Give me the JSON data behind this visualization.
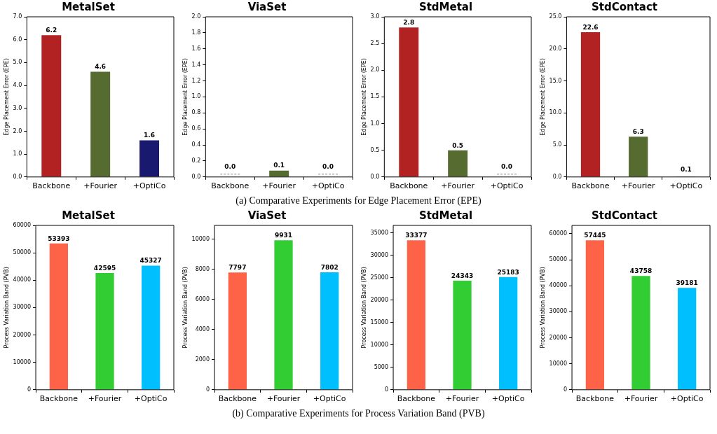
{
  "chart_data": [
    {
      "type": "bar",
      "title": "MetalSet",
      "ylabel": "Edge Placement Error (EPE)",
      "categories": [
        "Backbone",
        "+Fourier",
        "+OptiCo"
      ],
      "values": [
        6.2,
        4.6,
        1.6
      ],
      "colors": [
        "#b22222",
        "#556b2f",
        "#191970"
      ],
      "value_labels": [
        "6.2",
        "4.6",
        "1.6"
      ],
      "ylim": [
        0,
        7
      ],
      "yticks": [
        {
          "value": 0,
          "label": "0.0"
        },
        {
          "value": 1,
          "label": "1.0"
        },
        {
          "value": 2,
          "label": "2.0"
        },
        {
          "value": 3,
          "label": "3.0"
        },
        {
          "value": 4,
          "label": "4.0"
        },
        {
          "value": 5,
          "label": "5.0"
        },
        {
          "value": 6,
          "label": "6.0"
        },
        {
          "value": 7,
          "label": "7.0"
        }
      ],
      "annotations": [
        "(a) Comparative Experiments for Edge Placement Error (EPE)"
      ]
    },
    {
      "type": "bar",
      "title": "ViaSet",
      "ylabel": "Edge Placement Error (EPE)",
      "categories": [
        "Backbone",
        "+Fourier",
        "+OptiCo"
      ],
      "values": [
        0,
        0.08,
        0
      ],
      "colors": [
        "#b22222",
        "#556b2f",
        "#191970"
      ],
      "value_labels": [
        "0.0",
        "0.1",
        "0.0"
      ],
      "ylim": [
        0,
        2
      ],
      "yticks": [
        {
          "value": 0,
          "label": "0.0"
        },
        {
          "value": 0.2,
          "label": "0.2"
        },
        {
          "value": 0.4,
          "label": "0.4"
        },
        {
          "value": 0.6,
          "label": "0.6"
        },
        {
          "value": 0.8,
          "label": "0.8"
        },
        {
          "value": 1,
          "label": "1.0"
        },
        {
          "value": 1.2,
          "label": "1.2"
        },
        {
          "value": 1.4,
          "label": "1.4"
        },
        {
          "value": 1.6,
          "label": "1.6"
        },
        {
          "value": 1.8,
          "label": "1.8"
        },
        {
          "value": 2,
          "label": "2.0"
        }
      ]
    },
    {
      "type": "bar",
      "title": "StdMetal",
      "ylabel": "Edge Placement Error (EPE)",
      "categories": [
        "Backbone",
        "+Fourier",
        "+OptiCo"
      ],
      "values": [
        2.8,
        0.5,
        0
      ],
      "colors": [
        "#b22222",
        "#556b2f",
        "#191970"
      ],
      "value_labels": [
        "2.8",
        "0.5",
        "0.0"
      ],
      "ylim": [
        0,
        3
      ],
      "yticks": [
        {
          "value": 0,
          "label": "0.0"
        },
        {
          "value": 0.5,
          "label": "0.5"
        },
        {
          "value": 1,
          "label": "1.0"
        },
        {
          "value": 1.5,
          "label": "1.5"
        },
        {
          "value": 2,
          "label": "2.0"
        },
        {
          "value": 2.5,
          "label": "2.5"
        },
        {
          "value": 3,
          "label": "3.0"
        }
      ]
    },
    {
      "type": "bar",
      "title": "StdContact",
      "ylabel": "Edge Placement Error (EPE)",
      "categories": [
        "Backbone",
        "+Fourier",
        "+OptiCo"
      ],
      "values": [
        22.6,
        6.3,
        0.1
      ],
      "colors": [
        "#b22222",
        "#556b2f",
        "#191970"
      ],
      "value_labels": [
        "22.6",
        "6.3",
        "0.1"
      ],
      "ylim": [
        0,
        25
      ],
      "yticks": [
        {
          "value": 0,
          "label": "0.0"
        },
        {
          "value": 5,
          "label": "5.0"
        },
        {
          "value": 10,
          "label": "10.0"
        },
        {
          "value": 15,
          "label": "15.0"
        },
        {
          "value": 20,
          "label": "20.0"
        },
        {
          "value": 25,
          "label": "25.0"
        }
      ]
    },
    {
      "type": "bar",
      "title": "MetalSet",
      "ylabel": "Process Variation Band (PVB)",
      "categories": [
        "Backbone",
        "+Fourier",
        "+OptiCo"
      ],
      "values": [
        53393,
        42595,
        45327
      ],
      "colors": [
        "#ff6347",
        "#32cd32",
        "#00bfff"
      ],
      "data_labels": true,
      "ylim": [
        0,
        60000
      ],
      "yticks": [
        0,
        10000,
        20000,
        30000,
        40000,
        50000,
        60000
      ],
      "annotations": [
        "(b) Comparative Experiments for Process Variation Band (PVB)"
      ]
    },
    {
      "type": "bar",
      "title": "ViaSet",
      "ylabel": "Process Variation Band (PVB)",
      "categories": [
        "Backbone",
        "+Fourier",
        "+OptiCo"
      ],
      "values": [
        7797,
        9931,
        7802
      ],
      "colors": [
        "#ff6347",
        "#32cd32",
        "#00bfff"
      ],
      "data_labels": true,
      "ylim": [
        0,
        10924
      ],
      "yticks": [
        0,
        2000,
        4000,
        6000,
        8000,
        10000
      ]
    },
    {
      "type": "bar",
      "title": "StdMetal",
      "ylabel": "Process Variation Band (PVB)",
      "categories": [
        "Backbone",
        "+Fourier",
        "+OptiCo"
      ],
      "values": [
        33377,
        24343,
        25183
      ],
      "colors": [
        "#ff6347",
        "#32cd32",
        "#00bfff"
      ],
      "data_labels": true,
      "ylim": [
        0,
        36715
      ],
      "yticks": [
        0,
        5000,
        10000,
        15000,
        20000,
        25000,
        30000,
        35000
      ]
    },
    {
      "type": "bar",
      "title": "StdContact",
      "ylabel": "Process Variation Band (PVB)",
      "categories": [
        "Backbone",
        "+Fourier",
        "+OptiCo"
      ],
      "values": [
        57445,
        43758,
        39181
      ],
      "colors": [
        "#ff6347",
        "#32cd32",
        "#00bfff"
      ],
      "data_labels": true,
      "ylim": [
        0,
        63190
      ],
      "yticks": [
        0,
        10000,
        20000,
        30000,
        40000,
        50000,
        60000
      ]
    }
  ]
}
